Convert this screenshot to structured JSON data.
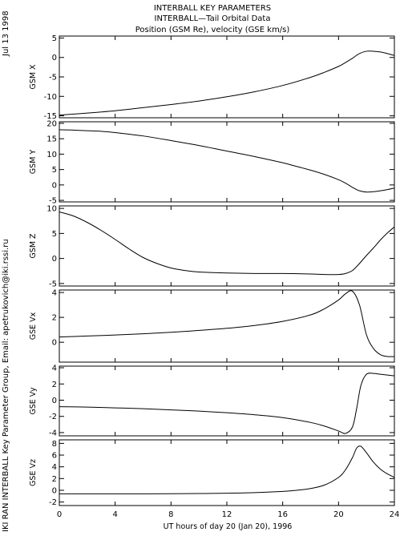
{
  "header": {
    "date_stamp": "Jul 13 1998",
    "title_1": "INTERBALL KEY PARAMETERS",
    "title_2": "INTERBALL—Tail Orbital Data",
    "title_3": "Position (GSM Re), velocity (GSE km/s)"
  },
  "side_credit": "IKI RAN INTERBALL Key Parameter Group, Email: apetrukovich@iki.rssi.ru",
  "chart_data": {
    "type": "line",
    "xlabel": "UT hours of day  20 (Jan 20), 1996",
    "xlim": [
      0,
      24
    ],
    "x_ticks": [
      0,
      4,
      8,
      12,
      16,
      20,
      24
    ],
    "x_tick_labels": [
      "0",
      "4",
      "8",
      "12",
      "16",
      "20",
      "24"
    ],
    "grid": false,
    "panels": [
      {
        "ylabel": "GSM X",
        "ylim": [
          -15.5,
          5.5
        ],
        "y_ticks": [
          -15,
          -10,
          -5,
          0,
          5
        ],
        "y_tick_labels": [
          "-15",
          "-10",
          "-5",
          "0",
          "5"
        ],
        "x": [
          0,
          2,
          4,
          6,
          8,
          10,
          12,
          14,
          16,
          18,
          19,
          20,
          20.5,
          21,
          21.5,
          22,
          22.5,
          23,
          23.5,
          24
        ],
        "y": [
          -14.8,
          -14.3,
          -13.7,
          -12.9,
          -12.1,
          -11.2,
          -10.1,
          -8.8,
          -7.2,
          -5.1,
          -3.8,
          -2.3,
          -1.3,
          -0.2,
          1.0,
          1.6,
          1.6,
          1.4,
          1.0,
          0.5
        ]
      },
      {
        "ylabel": "GSM Y",
        "ylim": [
          -5.5,
          20.5
        ],
        "y_ticks": [
          -5,
          0,
          5,
          10,
          15,
          20
        ],
        "y_tick_labels": [
          "-5",
          "0",
          "5",
          "10",
          "15",
          "20"
        ],
        "x": [
          0,
          1,
          2,
          3,
          4,
          6,
          8,
          10,
          12,
          14,
          16,
          17,
          18,
          19,
          20,
          20.5,
          21,
          21.5,
          22,
          22.5,
          23,
          23.5,
          24
        ],
        "y": [
          17.9,
          17.8,
          17.6,
          17.4,
          17.0,
          15.9,
          14.4,
          12.8,
          11.0,
          9.2,
          7.2,
          6.0,
          4.8,
          3.4,
          1.7,
          0.6,
          -0.8,
          -1.9,
          -2.3,
          -2.2,
          -1.9,
          -1.5,
          -1.0
        ]
      },
      {
        "ylabel": "GSM Z",
        "ylim": [
          -5.5,
          10.5
        ],
        "y_ticks": [
          -5,
          0,
          5,
          10
        ],
        "y_tick_labels": [
          "-5",
          "0",
          "5",
          "10"
        ],
        "x": [
          0,
          1,
          2,
          3,
          4,
          5,
          6,
          7,
          8,
          9,
          10,
          12,
          14,
          16,
          18,
          19,
          20,
          20.5,
          21,
          21.5,
          22,
          22.5,
          23,
          23.5,
          24
        ],
        "y": [
          9.3,
          8.5,
          7.2,
          5.6,
          3.8,
          1.9,
          0.2,
          -1.0,
          -1.9,
          -2.4,
          -2.7,
          -2.9,
          -3.0,
          -3.0,
          -3.1,
          -3.2,
          -3.2,
          -3.0,
          -2.4,
          -1.0,
          0.6,
          2.1,
          3.7,
          5.1,
          6.3
        ]
      },
      {
        "ylabel": "GSE Vx",
        "ylim": [
          -1.6,
          4.2
        ],
        "y_ticks": [
          0,
          2,
          4
        ],
        "y_tick_labels": [
          "0",
          "2",
          "4"
        ],
        "x": [
          0,
          2,
          4,
          6,
          8,
          10,
          12,
          14,
          16,
          18,
          19,
          20,
          20.5,
          21,
          21.5,
          22,
          22.5,
          23,
          23.5,
          24
        ],
        "y": [
          0.42,
          0.5,
          0.58,
          0.68,
          0.8,
          0.95,
          1.12,
          1.35,
          1.68,
          2.2,
          2.7,
          3.4,
          3.9,
          4.1,
          3.0,
          0.6,
          -0.5,
          -1.0,
          -1.15,
          -1.15
        ]
      },
      {
        "ylabel": "GSE Vy",
        "ylim": [
          -4.4,
          4.2
        ],
        "y_ticks": [
          -4,
          -2,
          0,
          2,
          4
        ],
        "y_tick_labels": [
          "-4",
          "-2",
          "0",
          "2",
          "4"
        ],
        "x": [
          0,
          2,
          4,
          6,
          8,
          10,
          12,
          14,
          16,
          18,
          19,
          20,
          20.5,
          21,
          21.3,
          21.6,
          22,
          22.5,
          23,
          23.5,
          24
        ],
        "y": [
          -0.8,
          -0.85,
          -0.95,
          -1.05,
          -1.2,
          -1.35,
          -1.55,
          -1.8,
          -2.15,
          -2.75,
          -3.2,
          -3.8,
          -4.1,
          -3.3,
          -1.0,
          1.8,
          3.2,
          3.3,
          3.2,
          3.1,
          3.0
        ]
      },
      {
        "ylabel": "GSE Vz",
        "ylim": [
          -2.6,
          8.6
        ],
        "y_ticks": [
          -2,
          0,
          2,
          4,
          6,
          8
        ],
        "y_tick_labels": [
          "-2",
          "0",
          "2",
          "4",
          "6",
          "8"
        ],
        "x": [
          0,
          2,
          4,
          6,
          8,
          10,
          12,
          14,
          16,
          17,
          18,
          19,
          20,
          20.5,
          21,
          21.3,
          21.6,
          22,
          22.5,
          23,
          23.5,
          24
        ],
        "y": [
          -0.6,
          -0.6,
          -0.6,
          -0.6,
          -0.58,
          -0.55,
          -0.5,
          -0.4,
          -0.2,
          0.0,
          0.3,
          0.9,
          2.2,
          3.5,
          5.6,
          7.2,
          7.5,
          6.4,
          4.8,
          3.6,
          2.8,
          2.2
        ]
      }
    ]
  }
}
